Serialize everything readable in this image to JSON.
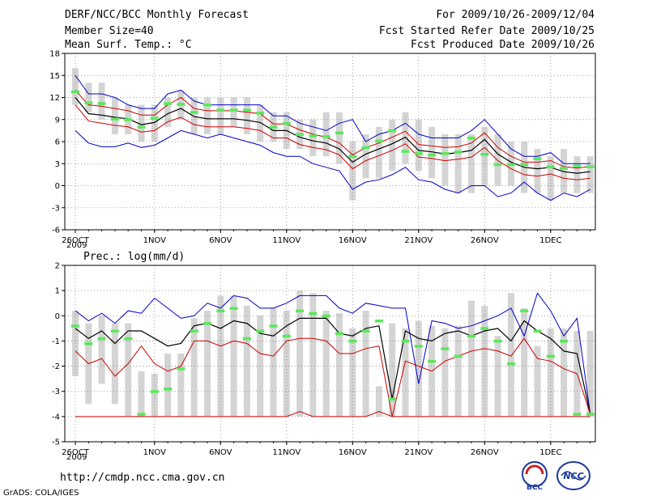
{
  "header": {
    "title": "DERF/NCC/BCC Monthly Forecast",
    "members": "Member Size=40",
    "variable": "Mean Surf. Temp.: °C",
    "period": "For 2009/10/26-2009/12/04",
    "started": "Fcst Started Refer Date 2009/10/25",
    "produced": "Fcst Produced Date 2009/10/26"
  },
  "footer": {
    "url": "http://cmdp.ncc.cma.gov.cn",
    "credit": "GrADS: COLA/IGES",
    "logo_bcc": "BCC",
    "logo_ncc": "NCC"
  },
  "colors": {
    "upper": "#0000cc",
    "spread": "#cc0000",
    "mean": "#000000",
    "box": "#d4d4d4",
    "median": "#5ae85a",
    "grid": "#888888"
  },
  "chart_data": [
    {
      "type": "line",
      "title": "Mean Surf. Temp.: °C",
      "ylim": [
        -6,
        18
      ],
      "yticks": [
        -6,
        -3,
        0,
        3,
        6,
        9,
        12,
        15,
        18
      ],
      "xtick_days": [
        0,
        6,
        11,
        16,
        21,
        26,
        31,
        36
      ],
      "xtick_labels": [
        "26OCT",
        "1NOV",
        "6NOV",
        "11NOV",
        "16NOV",
        "21NOV",
        "26NOV",
        "1DEC"
      ],
      "xsub_label": "2009",
      "x_days": [
        0,
        1,
        2,
        3,
        4,
        5,
        6,
        7,
        8,
        9,
        10,
        11,
        12,
        13,
        14,
        15,
        16,
        17,
        18,
        19,
        20,
        21,
        22,
        23,
        24,
        25,
        26,
        27,
        28,
        29,
        30,
        31,
        32,
        33,
        34,
        35,
        36,
        37,
        38,
        39
      ],
      "series": [
        {
          "name": "max",
          "values": [
            15,
            12.5,
            12.5,
            12,
            11,
            10.5,
            10.5,
            12.5,
            13,
            11.5,
            11,
            11,
            11,
            11,
            11,
            9.5,
            9.5,
            8.5,
            8,
            7.5,
            8.5,
            9,
            6,
            7,
            7.5,
            8.5,
            7,
            6.5,
            6.5,
            6.5,
            7.5,
            9,
            7,
            5,
            4,
            4,
            4.5,
            3,
            3,
            3
          ]
        },
        {
          "name": "upper",
          "values": [
            13,
            11,
            10.8,
            10.5,
            10.2,
            9.6,
            9.6,
            11,
            12,
            10.5,
            10.2,
            10.2,
            10.2,
            10,
            9.8,
            8.4,
            8.4,
            7.6,
            7,
            6.6,
            5.8,
            4.2,
            5.2,
            5.8,
            6.6,
            7.4,
            5.6,
            5.4,
            5.2,
            5.3,
            5.8,
            7.2,
            5.2,
            4,
            3.2,
            3.2,
            3.4,
            2.6,
            2.4,
            2.6
          ]
        },
        {
          "name": "mean",
          "values": [
            12,
            9.8,
            9.6,
            9.3,
            9.1,
            8.3,
            8.6,
            9.8,
            10.5,
            9.4,
            9.1,
            9.1,
            9.1,
            8.9,
            8.6,
            7.5,
            7.5,
            6.6,
            6.1,
            5.8,
            5,
            3.2,
            4.3,
            5,
            5.7,
            6.6,
            4.8,
            4.6,
            4.3,
            4.5,
            4.8,
            6.3,
            4.3,
            3.2,
            2.5,
            2.3,
            2.5,
            1.9,
            1.7,
            1.9
          ]
        },
        {
          "name": "lower",
          "values": [
            11,
            8.8,
            8.5,
            8.2,
            8,
            7.3,
            7.5,
            8.7,
            9.3,
            8.3,
            8,
            8,
            8,
            7.8,
            7.5,
            6.5,
            6.5,
            5.6,
            5.2,
            4.9,
            4.2,
            2.3,
            3.4,
            4.1,
            4.8,
            5.7,
            3.9,
            3.7,
            3.4,
            3.6,
            3.9,
            5.2,
            3.4,
            2.3,
            1.5,
            1.3,
            1.6,
            1,
            0.8,
            1
          ]
        },
        {
          "name": "min",
          "values": [
            7.5,
            5.8,
            5.3,
            5.3,
            5.8,
            5.2,
            5.5,
            6.5,
            7.5,
            7,
            6.5,
            7,
            6.5,
            6,
            5.5,
            4.5,
            4,
            4,
            3,
            2.5,
            2,
            -0.5,
            0.5,
            0.8,
            1.5,
            2.5,
            0.8,
            0.5,
            -0.5,
            -1,
            0,
            0,
            -1.5,
            -1,
            0.5,
            -1,
            -2,
            -1,
            -1.5,
            -0.5
          ]
        }
      ],
      "box_low": [
        11,
        10,
        9,
        7,
        7,
        6,
        6,
        8,
        9,
        7,
        7,
        7,
        8,
        7,
        6,
        6,
        5,
        5,
        4,
        4,
        3,
        -2,
        1,
        1,
        2,
        3,
        2,
        1,
        0,
        -1,
        -1,
        0,
        0,
        0,
        -1,
        -1,
        -2,
        -1,
        -1,
        -1
      ],
      "box_high": [
        16,
        14,
        14,
        12,
        11,
        11,
        11,
        12,
        13,
        12,
        12,
        12,
        12,
        12,
        11,
        10,
        10,
        9,
        9,
        10,
        10,
        6,
        7,
        8,
        9,
        10,
        9,
        8,
        7,
        7,
        7,
        8,
        7,
        6,
        6,
        5,
        4,
        5,
        4,
        4
      ],
      "median": [
        12.8,
        11.3,
        11.2,
        9.1,
        9,
        8,
        9.2,
        11.2,
        11.1,
        10,
        11,
        10.3,
        10.3,
        10.3,
        9.9,
        8,
        8.5,
        7,
        6.8,
        6.7,
        7.2,
        4,
        5.2,
        6.1,
        7.5,
        4.7,
        4.4,
        4.2,
        4.4,
        4.6,
        6.5,
        4.3,
        2.9,
        2.9,
        2.9,
        3.7,
        2.6,
        2.4,
        2.7,
        2.6
      ]
    },
    {
      "type": "line",
      "title": "Prec.: log(mm/d)",
      "ylim": [
        -5,
        2
      ],
      "yticks": [
        -5,
        -4,
        -3,
        -2,
        -1,
        0,
        1,
        2
      ],
      "xtick_days": [
        0,
        6,
        11,
        16,
        21,
        26,
        31,
        36
      ],
      "xtick_labels": [
        "26OCT",
        "1NOV",
        "6NOV",
        "11NOV",
        "16NOV",
        "21NOV",
        "26NOV",
        "1DEC"
      ],
      "xsub_label": "2009",
      "x_days": [
        0,
        1,
        2,
        3,
        4,
        5,
        6,
        7,
        8,
        9,
        10,
        11,
        12,
        13,
        14,
        15,
        16,
        17,
        18,
        19,
        20,
        21,
        22,
        23,
        24,
        25,
        26,
        27,
        28,
        29,
        30,
        31,
        32,
        33,
        34,
        35,
        36,
        37,
        38,
        39
      ],
      "series": [
        {
          "name": "upper",
          "values": [
            0.2,
            -0.2,
            0.1,
            -0.3,
            0.2,
            0.1,
            0.7,
            0.3,
            -0.1,
            0,
            0.5,
            0.3,
            0.8,
            0.7,
            0.3,
            0.3,
            0.5,
            0.8,
            0.8,
            0.8,
            0.3,
            0.1,
            0.5,
            0.4,
            0.3,
            0.3,
            -2.7,
            -0.2,
            -0.3,
            -0.5,
            -0.4,
            -0.2,
            0,
            0.3,
            -0.8,
            0.9,
            0.2,
            -0.8,
            -0.1,
            -3.9
          ]
        },
        {
          "name": "mean",
          "values": [
            -0.5,
            -0.9,
            -0.6,
            -1.1,
            -0.6,
            -0.6,
            -0.9,
            -1.2,
            -1.1,
            -0.4,
            -0.3,
            -0.5,
            -0.2,
            -0.3,
            -0.7,
            -0.8,
            -0.4,
            -0.1,
            -0.1,
            -0.1,
            -0.7,
            -0.8,
            -0.5,
            -0.4,
            -3.3,
            -0.6,
            -0.9,
            -1.0,
            -0.7,
            -0.6,
            -0.8,
            -0.6,
            -0.5,
            -1.0,
            -0.2,
            -0.6,
            -0.9,
            -1.4,
            -1.5,
            -3.9
          ]
        },
        {
          "name": "lower",
          "values": [
            -1.4,
            -1.9,
            -1.7,
            -2.4,
            -1.9,
            -1.2,
            -1.9,
            -2.2,
            -2.0,
            -1.0,
            -1.0,
            -1.2,
            -1.0,
            -1.1,
            -1.5,
            -1.6,
            -1.0,
            -0.9,
            -0.9,
            -1.0,
            -1.5,
            -1.5,
            -1.3,
            -1.2,
            -4.0,
            -1.8,
            -2.0,
            -2.2,
            -1.8,
            -1.6,
            -1.4,
            -1.3,
            -1.4,
            -1.6,
            -0.9,
            -1.7,
            -1.8,
            -2.1,
            -2.3,
            -3.9
          ]
        },
        {
          "name": "min",
          "values": [
            -4,
            -4,
            -4,
            -4,
            -4,
            -4,
            -4,
            -4,
            -4,
            -4,
            -4,
            -4,
            -4,
            -4,
            -4,
            -4,
            -4,
            -3.8,
            -4,
            -4,
            -4,
            -4,
            -4,
            -3.8,
            -4,
            -4,
            -4,
            -4,
            -4,
            -4,
            -4,
            -4,
            -4,
            -4,
            -4,
            -4,
            -4,
            -4,
            -4,
            -4
          ]
        }
      ],
      "box_low": [
        -2.4,
        -3.5,
        -2.7,
        -3.5,
        -4,
        -4,
        -4,
        -4,
        -4,
        -4,
        -4,
        -4,
        -4,
        -4,
        -4,
        -4,
        -4,
        -4,
        -4,
        -4,
        -4,
        -4,
        -4,
        -4,
        -4,
        -4,
        -4,
        -4,
        -4,
        -4,
        -4,
        -4,
        -4,
        -4,
        -4,
        -4,
        -4,
        -4,
        -4,
        -4
      ],
      "box_high": [
        0.2,
        -0.3,
        0,
        -0.3,
        -0.3,
        -2.2,
        -2.3,
        -1.5,
        -1.5,
        -0.1,
        0.2,
        0.8,
        0.8,
        0.4,
        0,
        0.3,
        0.2,
        1,
        0.9,
        0.2,
        0.1,
        -0.5,
        0.2,
        -2.8,
        -0.3,
        -0.5,
        -0.2,
        -0.4,
        -0.5,
        -0.4,
        0.6,
        0.4,
        -0.8,
        0.9,
        0.3,
        -1.2,
        -0.5,
        -0.5,
        -0.6,
        -0.6
      ],
      "median": [
        -0.4,
        -1.1,
        -0.9,
        -0.6,
        -0.9,
        -3.9,
        -3,
        -2.9,
        -2.1,
        -0.6,
        -0.3,
        0.2,
        0.3,
        -0.9,
        -0.6,
        -0.4,
        -0.8,
        0.2,
        0.1,
        0.0,
        -0.7,
        -1.0,
        -0.6,
        -0.2,
        -3.3,
        -1.0,
        -1.2,
        -1.8,
        -1.3,
        -1.6,
        -0.8,
        -0.5,
        -1.0,
        -1.9,
        0.2,
        -0.6,
        -1.6,
        -1.0,
        -3.9,
        -3.9
      ]
    }
  ]
}
